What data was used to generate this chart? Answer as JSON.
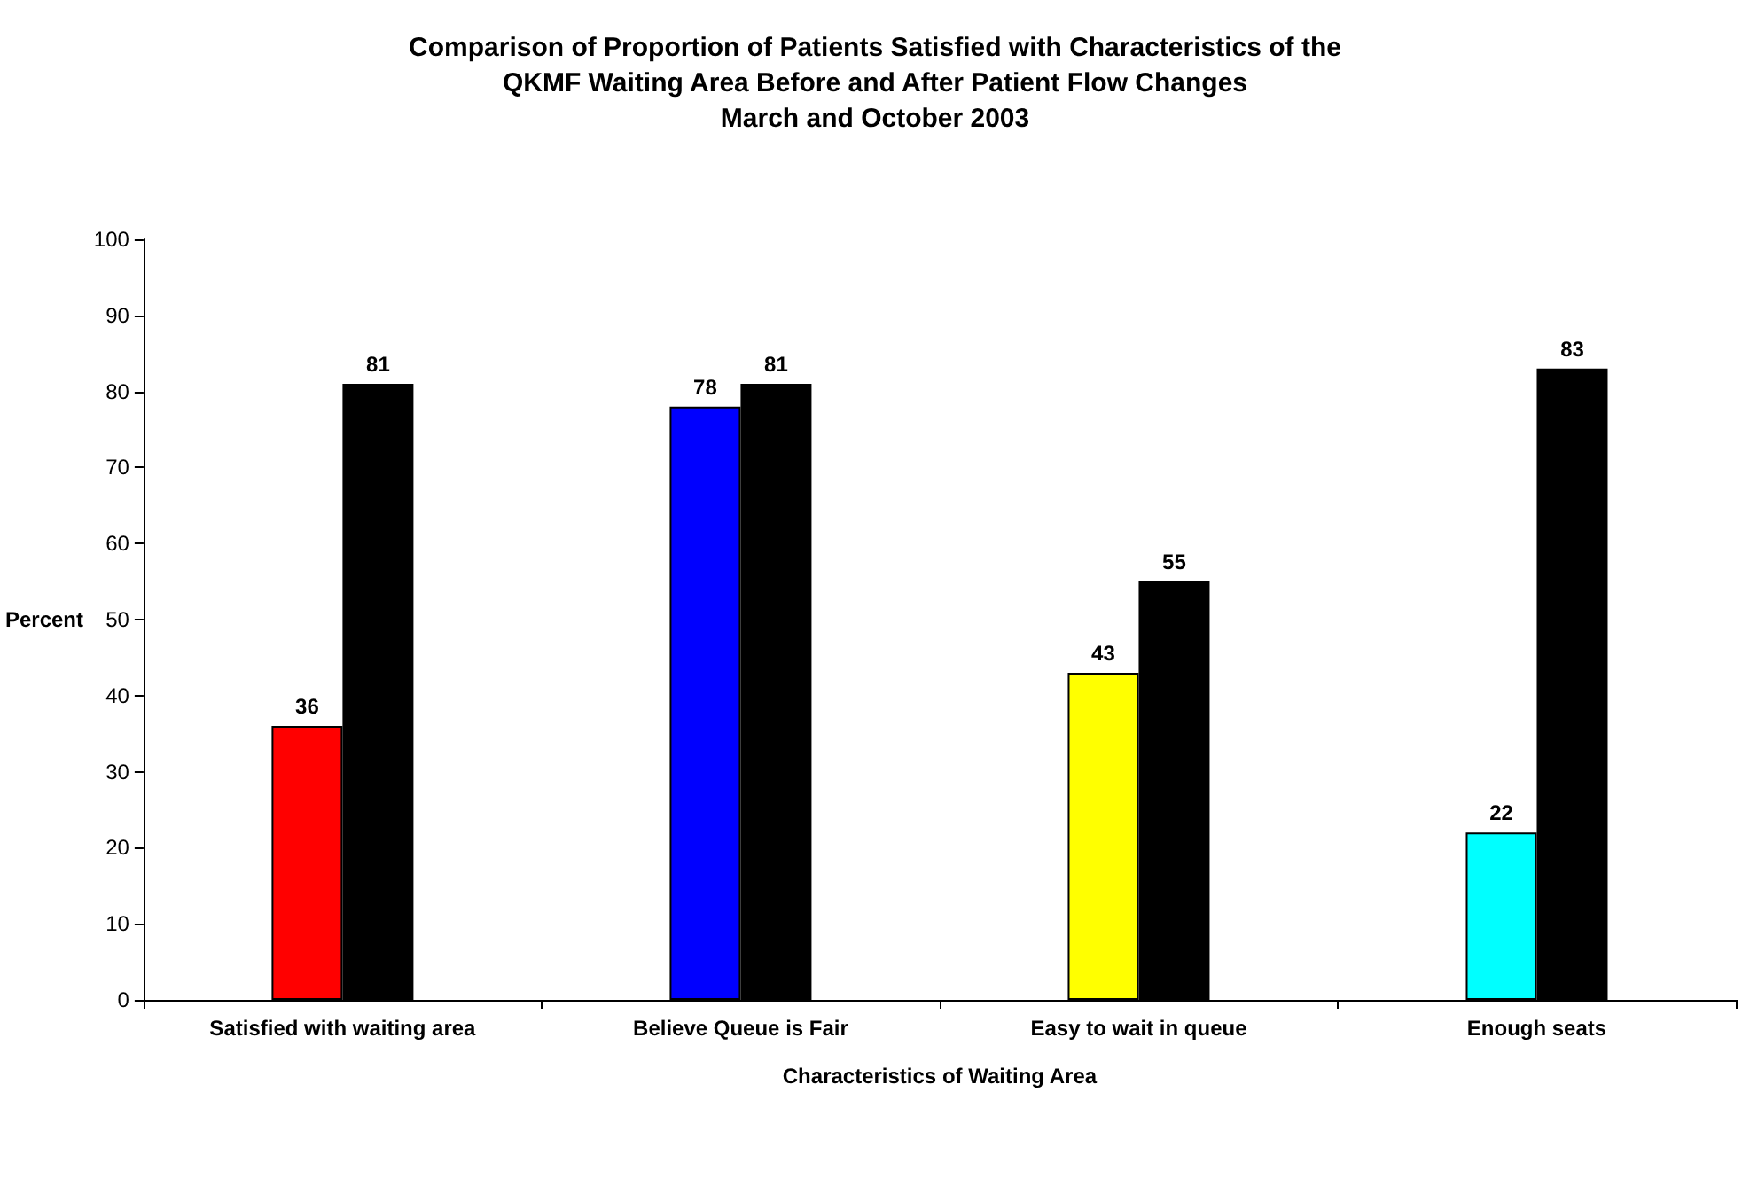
{
  "chart_data": {
    "type": "bar",
    "title": "Comparison of Proportion of Patients Satisfied with Characteristics of the\nQKMF Waiting Area Before and After Patient Flow Changes\nMarch and October 2003",
    "xlabel": "Characteristics of Waiting Area",
    "ylabel": "Percent",
    "categories": [
      "Satisfied with waiting area",
      "Believe Queue is Fair",
      "Easy to wait in queue",
      "Enough seats"
    ],
    "series": [
      {
        "colors": [
          "#ff0000",
          "#0000ff",
          "#ffff00",
          "#00ffff"
        ],
        "values": [
          36,
          78,
          43,
          22
        ]
      },
      {
        "color": "#000000",
        "values": [
          81,
          81,
          55,
          83
        ]
      }
    ],
    "ylim": [
      0,
      100
    ],
    "yticks": [
      0,
      10,
      20,
      30,
      40,
      50,
      60,
      70,
      80,
      90,
      100
    ],
    "data_labels": true,
    "grid": false
  }
}
